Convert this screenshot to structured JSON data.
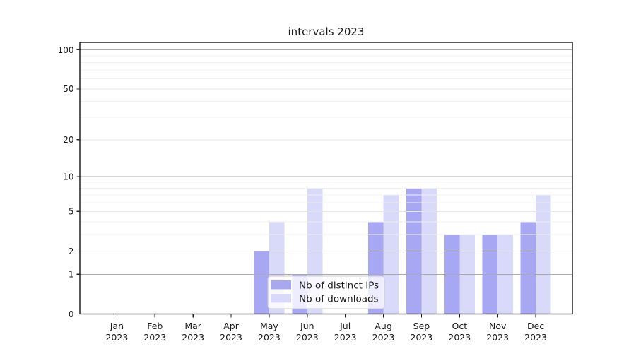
{
  "figure": {
    "title": "intervals 2023"
  },
  "chart_data": {
    "type": "bar",
    "title": "intervals 2023",
    "categories": [
      "Jan 2023",
      "Feb 2023",
      "Mar 2023",
      "Apr 2023",
      "May 2023",
      "Jun 2023",
      "Jul 2023",
      "Aug 2023",
      "Sep 2023",
      "Oct 2023",
      "Nov 2023",
      "Dec 2023"
    ],
    "series": [
      {
        "name": "Nb of distinct IPs",
        "color": "#a7a7f3",
        "values": [
          0,
          0,
          0,
          0,
          2,
          1,
          0,
          4,
          8,
          3,
          3,
          4
        ]
      },
      {
        "name": "Nb of downloads",
        "color": "#d9d9f9",
        "values": [
          0,
          0,
          0,
          0,
          4,
          8,
          0,
          7,
          8,
          3,
          3,
          7
        ]
      }
    ],
    "yscale": "log1p",
    "ylim": [
      0,
      114
    ],
    "yticks": [
      {
        "value": 0,
        "label": "0"
      },
      {
        "value": 1,
        "label": "1"
      },
      {
        "value": 2,
        "label": "2"
      },
      {
        "value": 5,
        "label": "5"
      },
      {
        "value": 10,
        "label": "10"
      },
      {
        "value": 20,
        "label": "20"
      },
      {
        "value": 50,
        "label": "50"
      },
      {
        "value": 100,
        "label": "100"
      }
    ],
    "grid": {
      "major_values": [
        1,
        10,
        100
      ],
      "mid_values": [
        2,
        5,
        20,
        50
      ],
      "minor_values": [
        3,
        4,
        6,
        7,
        8,
        9,
        30,
        40,
        60,
        70,
        80,
        90
      ],
      "major_color": "#ababab",
      "mid_color": "#e5e5e5",
      "minor_color": "#f0f0f0"
    },
    "legend": {
      "position": "lower center",
      "entries": [
        "Nb of distinct IPs",
        "Nb of downloads"
      ]
    }
  }
}
